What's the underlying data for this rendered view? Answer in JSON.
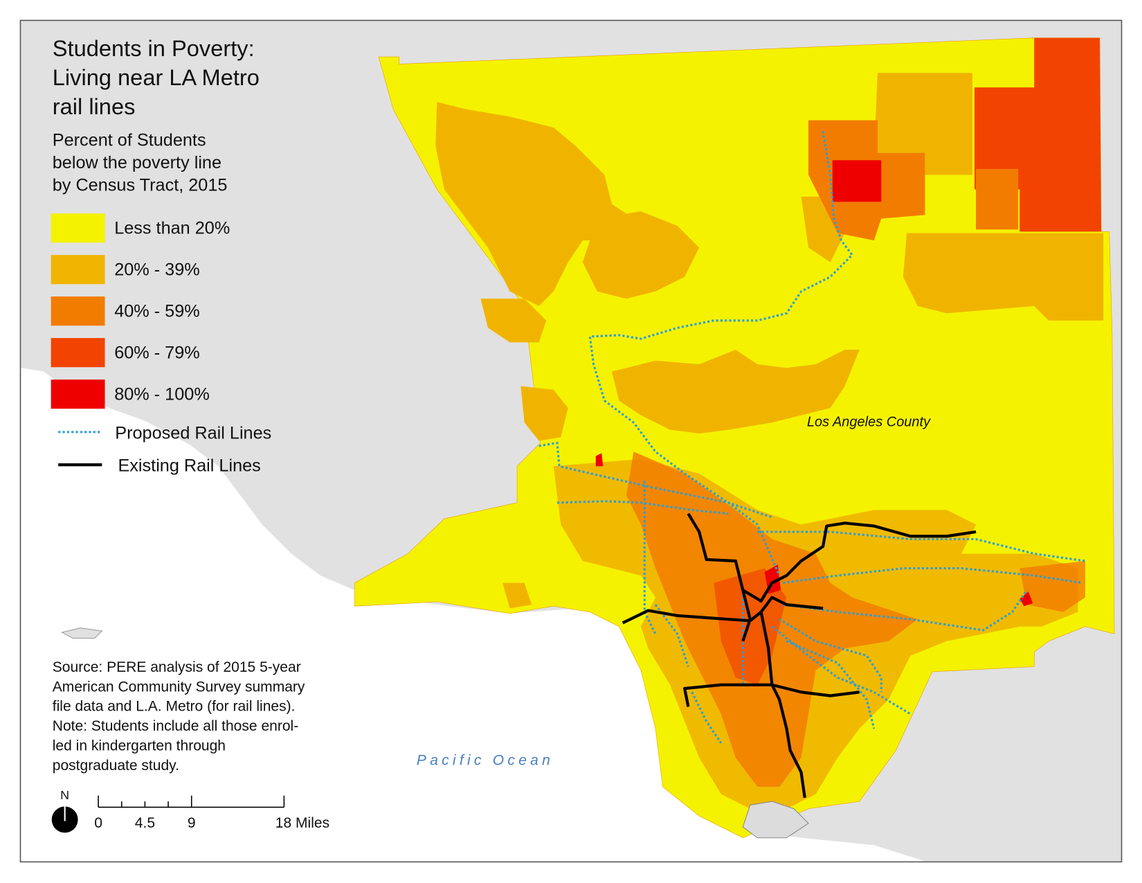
{
  "title": [
    "Students in Poverty:",
    "Living near LA Metro",
    "rail lines"
  ],
  "subtitle": [
    "Percent of Students",
    "below the poverty line",
    "by Census Tract, 2015"
  ],
  "legend": [
    {
      "label": "Less than 20%",
      "color": "#f5f200"
    },
    {
      "label": "20% - 39%",
      "color": "#f0b400"
    },
    {
      "label": "40% - 59%",
      "color": "#f27c00"
    },
    {
      "label": "60% - 79%",
      "color": "#f24400"
    },
    {
      "label": "80% - 100%",
      "color": "#ee0000"
    }
  ],
  "rail_legend": [
    {
      "label": "Proposed Rail Lines",
      "color": "#2a9fd8"
    },
    {
      "label": "Existing Rail Lines",
      "color": "#000000"
    }
  ],
  "map_labels": {
    "county": "Los Angeles County",
    "ocean": "Pacific Ocean"
  },
  "source": [
    "Source: PERE analysis of 2015 5-year",
    "American Community Survey summary",
    "file data and L.A. Metro (for rail lines).",
    "Note: Students include all those enrol-",
    "led in kindergarten through",
    "postgraduate study."
  ],
  "north": "N",
  "scale_bar": [
    "0",
    "4.5",
    "9",
    "18 Miles"
  ]
}
